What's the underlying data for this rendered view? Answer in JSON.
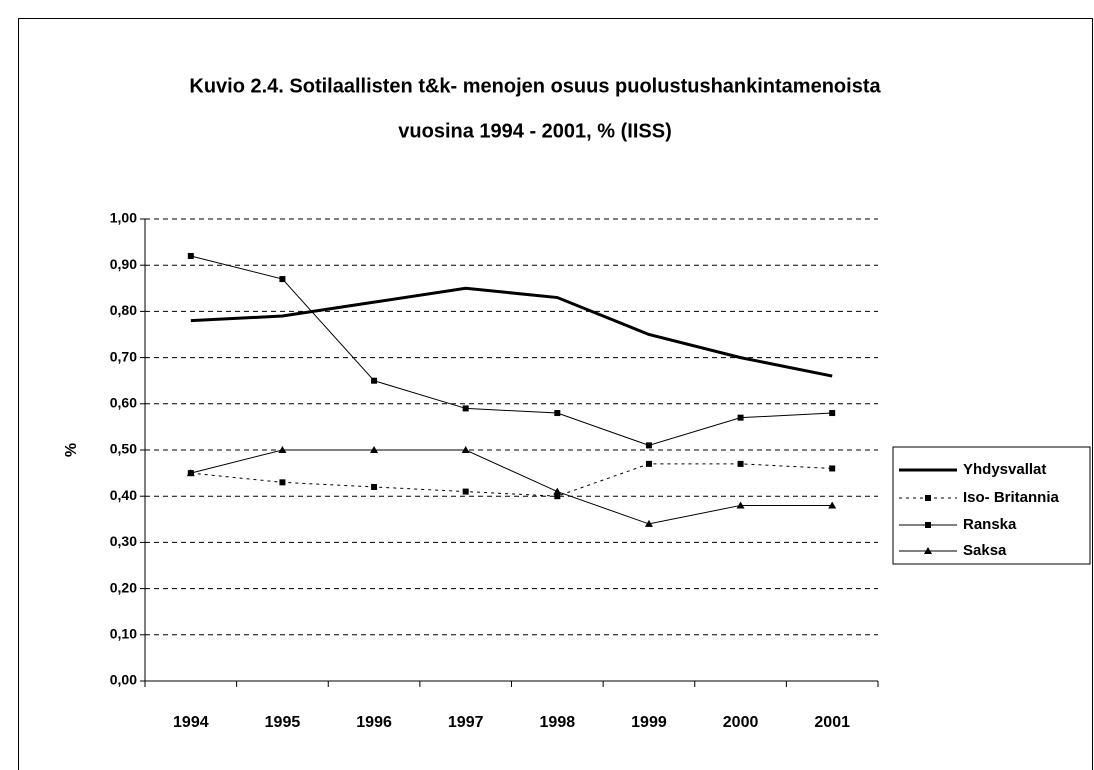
{
  "chart_data": {
    "type": "line",
    "title": "Kuvio 2.4. Sotilaallisten t&k- menojen osuus puolustushankintamenoista",
    "subtitle": "vuosina 1994 - 2001, % (IISS)",
    "y_label": "%",
    "categories": [
      "1994",
      "1995",
      "1996",
      "1997",
      "1998",
      "1999",
      "2000",
      "2001"
    ],
    "series": [
      {
        "name": "Yhdysvallat",
        "color": "#000000",
        "line_width": 3,
        "line_style": "solid",
        "marker": "none",
        "values": [
          0.78,
          0.79,
          0.82,
          0.85,
          0.83,
          0.75,
          0.7,
          0.66
        ]
      },
      {
        "name": "Iso- Britannia",
        "color": "#000000",
        "line_width": 1,
        "line_style": "dotted",
        "marker": "square",
        "values": [
          0.45,
          0.43,
          0.42,
          0.41,
          0.4,
          0.47,
          0.47,
          0.46
        ]
      },
      {
        "name": "Ranska",
        "color": "#000000",
        "line_width": 1,
        "line_style": "solid",
        "marker": "square",
        "values": [
          0.92,
          0.87,
          0.65,
          0.59,
          0.58,
          0.51,
          0.57,
          0.58
        ]
      },
      {
        "name": "Saksa",
        "color": "#000000",
        "line_width": 1,
        "line_style": "solid",
        "marker": "triangle",
        "values": [
          0.45,
          0.5,
          0.5,
          0.5,
          0.41,
          0.34,
          0.38,
          0.38
        ]
      }
    ],
    "ylim": [
      0,
      1
    ],
    "yticks": [
      {
        "value": 0,
        "label": "0,00"
      },
      {
        "value": 0.1,
        "label": "0,10"
      },
      {
        "value": 0.2,
        "label": "0,20"
      },
      {
        "value": 0.3,
        "label": "0,30"
      },
      {
        "value": 0.4,
        "label": "0,40"
      },
      {
        "value": 0.5,
        "label": "0,50"
      },
      {
        "value": 0.6,
        "label": "0,60"
      },
      {
        "value": 0.7,
        "label": "0,70"
      },
      {
        "value": 0.8,
        "label": "0,80"
      },
      {
        "value": 0.9,
        "label": "0,90"
      },
      {
        "value": 1,
        "label": "1,00"
      }
    ],
    "grid": true,
    "legend": "right"
  }
}
